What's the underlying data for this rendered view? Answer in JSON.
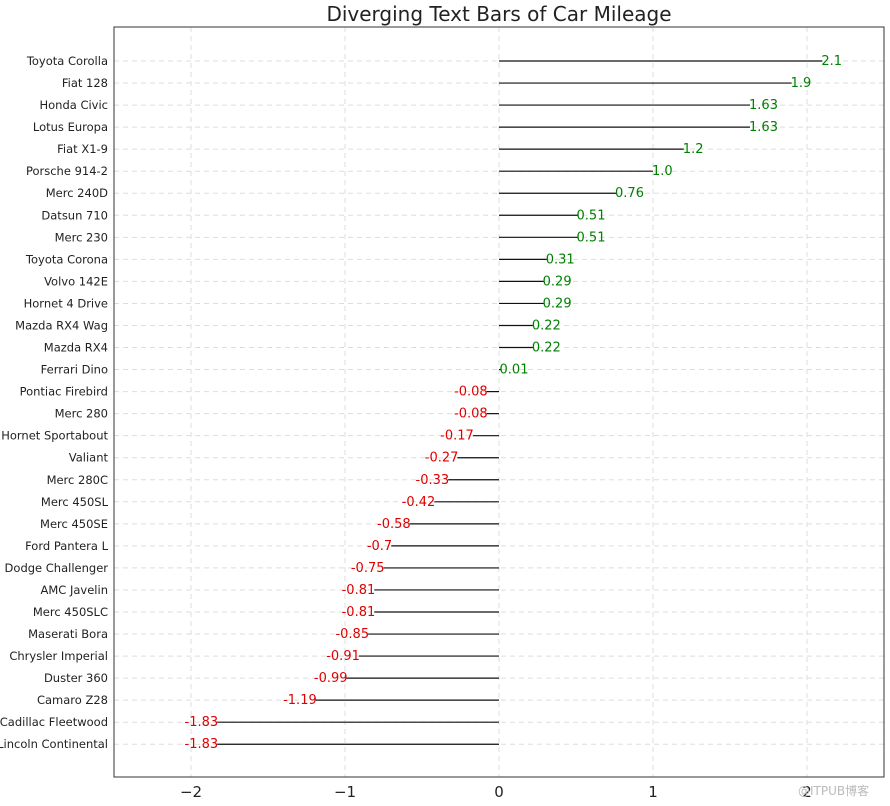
{
  "chart_data": {
    "type": "bar",
    "orientation": "horizontal",
    "title": "Diverging Text Bars of Car Mileage",
    "xlabel": "",
    "ylabel": "",
    "xlim": [
      -2.5,
      2.5
    ],
    "xticks": [
      -2,
      -1,
      0,
      1,
      2
    ],
    "xtick_labels": [
      "−2",
      "−1",
      "0",
      "1",
      "2"
    ],
    "grid": true,
    "grid_style": "dashed",
    "categories": [
      "Toyota Corolla",
      "Fiat 128",
      "Honda Civic",
      "Lotus Europa",
      "Fiat X1-9",
      "Porsche 914-2",
      "Merc 240D",
      "Datsun 710",
      "Merc 230",
      "Toyota Corona",
      "Volvo 142E",
      "Hornet 4 Drive",
      "Mazda RX4 Wag",
      "Mazda RX4",
      "Ferrari Dino",
      "Pontiac Firebird",
      "Merc 280",
      "Hornet Sportabout",
      "Valiant",
      "Merc 280C",
      "Merc 450SL",
      "Merc 450SE",
      "Ford Pantera L",
      "Dodge Challenger",
      "AMC Javelin",
      "Merc 450SLC",
      "Maserati Bora",
      "Chrysler Imperial",
      "Duster 360",
      "Camaro Z28",
      "Cadillac Fleetwood",
      "Lincoln Continental"
    ],
    "values": [
      2.1,
      1.9,
      1.63,
      1.63,
      1.2,
      1.0,
      0.76,
      0.51,
      0.51,
      0.31,
      0.29,
      0.29,
      0.22,
      0.22,
      0.01,
      -0.08,
      -0.08,
      -0.17,
      -0.27,
      -0.33,
      -0.42,
      -0.58,
      -0.7,
      -0.75,
      -0.81,
      -0.81,
      -0.85,
      -0.91,
      -0.99,
      -1.19,
      -1.83,
      -1.83
    ],
    "value_labels": [
      "2.1",
      "1.9",
      "1.63",
      "1.63",
      "1.2",
      "1.0",
      "0.76",
      "0.51",
      "0.51",
      "0.31",
      "0.29",
      "0.29",
      "0.22",
      "0.22",
      "0.01",
      "-0.08",
      "-0.08",
      "-0.17",
      "-0.27",
      "-0.33",
      "-0.42",
      "-0.58",
      "-0.7",
      "-0.75",
      "-0.81",
      "-0.81",
      "-0.85",
      "-0.91",
      "-0.99",
      "-1.19",
      "-1.83",
      "-1.83"
    ],
    "colors": {
      "positive": "#008000",
      "negative": "#e00000",
      "bar": "#111111",
      "grid": "#dddddd",
      "frame": "#333333"
    }
  },
  "watermark": "@ITPUB博客"
}
